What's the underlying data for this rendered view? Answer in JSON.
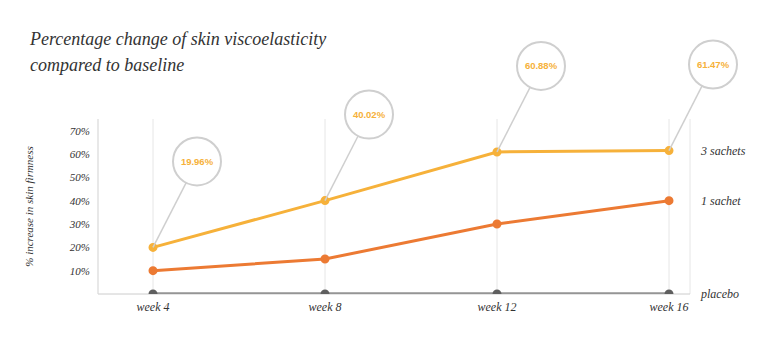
{
  "chart_data": {
    "type": "line",
    "title": "Percentage change of skin viscoelasticity compared to baseline",
    "y_label": "% increase in skin firmness",
    "categories": [
      "week 4",
      "week 8",
      "week 12",
      "week 16"
    ],
    "series": [
      {
        "name": "3 sachets",
        "color": "#f6b13a",
        "values": [
          19.96,
          40.02,
          60.88,
          61.47
        ],
        "data_labels": true,
        "value_labels": [
          "19.96%",
          "40.02%",
          "60.88%",
          "61.47%"
        ],
        "marker": "circle",
        "line_style": "solid"
      },
      {
        "name": "1 sachet",
        "color": "#ec7a33",
        "values": [
          10,
          15,
          30,
          40
        ],
        "marker": "circle",
        "line_style": "solid"
      },
      {
        "name": "placebo",
        "color": "#5f5f5f",
        "values": [
          0,
          0,
          0,
          0
        ],
        "marker": "circle",
        "line_style": "solid"
      }
    ],
    "ylim": [
      0,
      75
    ],
    "yticks": [
      {
        "value": 10,
        "label": "10%"
      },
      {
        "value": 20,
        "label": "20%"
      },
      {
        "value": 30,
        "label": "30%"
      },
      {
        "value": 40,
        "label": "40%"
      },
      {
        "value": 50,
        "label": "50%"
      },
      {
        "value": 60,
        "label": "60%"
      },
      {
        "value": 70,
        "label": "70%"
      }
    ],
    "grid": "x"
  }
}
